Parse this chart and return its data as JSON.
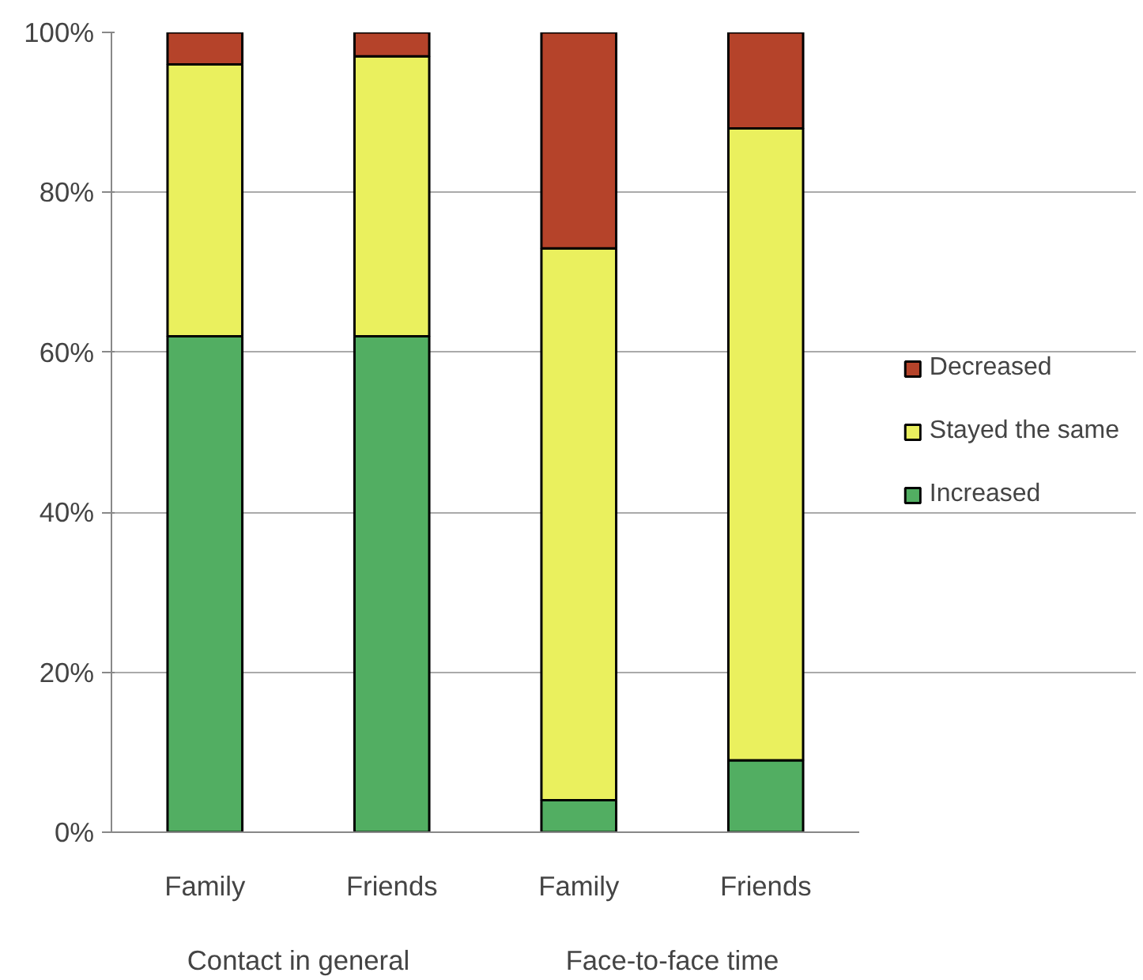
{
  "chart_data": {
    "type": "bar",
    "stacked": true,
    "categories": [
      "Family",
      "Friends",
      "Family",
      "Friends"
    ],
    "annotations": [
      "Contact in general",
      "Face-to-face time"
    ],
    "series": [
      {
        "name": "Increased",
        "color": "#52ae62",
        "values": [
          62,
          62,
          4,
          9
        ]
      },
      {
        "name": "Stayed the same",
        "color": "#eaf05e",
        "values": [
          34,
          35,
          69,
          79
        ]
      },
      {
        "name": "Decreased",
        "color": "#b5432a",
        "values": [
          4,
          3,
          27,
          12
        ]
      }
    ],
    "ylim": [
      0,
      100
    ],
    "yticks": [
      {
        "value": 0,
        "label": "0%"
      },
      {
        "value": 20,
        "label": "20%"
      },
      {
        "value": 40,
        "label": "40%"
      },
      {
        "value": 60,
        "label": "60%"
      },
      {
        "value": 80,
        "label": "80%"
      },
      {
        "value": 100,
        "label": "100%"
      }
    ],
    "grid": "y",
    "legend": "right"
  }
}
